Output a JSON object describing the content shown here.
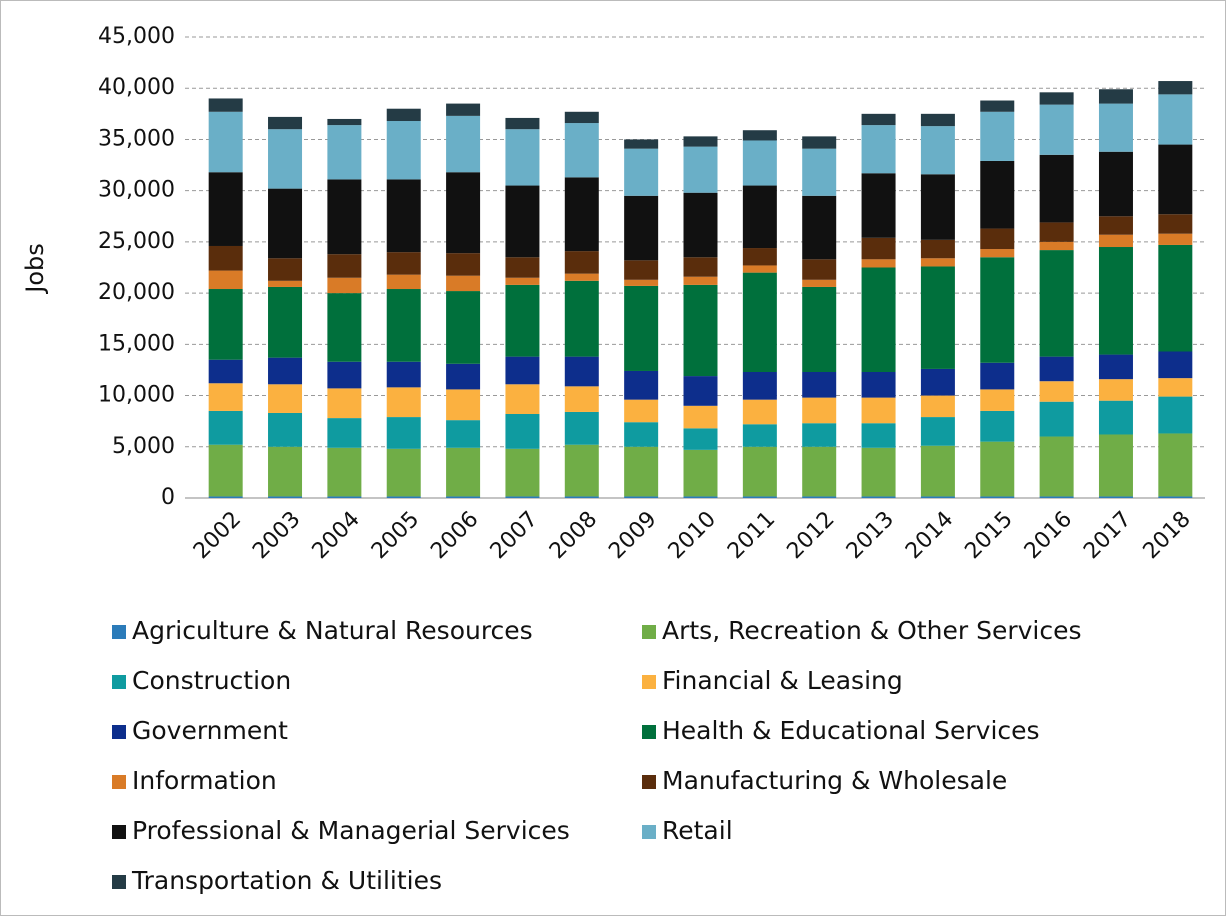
{
  "chart_data": {
    "type": "stacked_bar",
    "y_label": "Jobs",
    "categories": [
      "2002",
      "2003",
      "2004",
      "2005",
      "2006",
      "2007",
      "2008",
      "2009",
      "2010",
      "2011",
      "2012",
      "2013",
      "2014",
      "2015",
      "2016",
      "2017",
      "2018"
    ],
    "ylim": [
      0,
      45000
    ],
    "yticks": [
      0,
      {
        "value": 5000,
        "label": "5,000"
      },
      {
        "value": 10000,
        "label": "10,000"
      },
      {
        "value": 15000,
        "label": "15,000"
      },
      {
        "value": 20000,
        "label": "20,000"
      },
      {
        "value": 25000,
        "label": "25,000"
      },
      {
        "value": 30000,
        "label": "30,000"
      },
      {
        "value": 35000,
        "label": "35,000"
      },
      {
        "value": 40000,
        "label": "40,000"
      },
      {
        "value": 45000,
        "label": "45,000"
      }
    ],
    "grid": true,
    "legend": "bottom",
    "series": [
      {
        "name": "Agriculture & Natural Resources",
        "color": "#2b7bb9",
        "values": [
          150,
          150,
          150,
          150,
          150,
          150,
          150,
          150,
          150,
          150,
          150,
          150,
          150,
          150,
          150,
          150,
          150
        ]
      },
      {
        "name": "Arts, Recreation & Other Services",
        "color": "#70ad47",
        "values": [
          5050,
          4850,
          4750,
          4650,
          4750,
          4650,
          5050,
          4850,
          4550,
          4850,
          4850,
          4750,
          4950,
          5350,
          5850,
          6050,
          6150
        ]
      },
      {
        "name": "Construction",
        "color": "#0f9ba0",
        "values": [
          3300,
          3300,
          2900,
          3100,
          2700,
          3400,
          3200,
          2400,
          2100,
          2200,
          2300,
          2400,
          2800,
          3000,
          3400,
          3300,
          3600
        ]
      },
      {
        "name": "Financial & Leasing",
        "color": "#fbb140",
        "values": [
          2700,
          2800,
          2900,
          2900,
          3000,
          2900,
          2500,
          2200,
          2200,
          2400,
          2500,
          2500,
          2100,
          2100,
          2000,
          2100,
          1800
        ]
      },
      {
        "name": "Government",
        "color": "#0d2e8c",
        "values": [
          2300,
          2600,
          2600,
          2500,
          2500,
          2700,
          2900,
          2800,
          2900,
          2700,
          2500,
          2500,
          2600,
          2600,
          2400,
          2400,
          2600
        ]
      },
      {
        "name": "Health & Educational Services",
        "color": "#00703c",
        "values": [
          6900,
          6900,
          6700,
          7100,
          7100,
          7000,
          7400,
          8300,
          8900,
          9700,
          8300,
          10200,
          10000,
          10300,
          10400,
          10500,
          10400
        ]
      },
      {
        "name": "Information",
        "color": "#d97b27",
        "values": [
          1800,
          600,
          1500,
          1400,
          1500,
          700,
          700,
          600,
          800,
          700,
          700,
          800,
          800,
          800,
          800,
          1200,
          1100
        ]
      },
      {
        "name": "Manufacturing & Wholesale",
        "color": "#5a2d0c",
        "values": [
          2400,
          2200,
          2300,
          2200,
          2200,
          2000,
          2200,
          1900,
          1900,
          1700,
          2000,
          2100,
          1800,
          2000,
          1900,
          1800,
          1900
        ]
      },
      {
        "name": "Professional & Managerial Services",
        "color": "#111111",
        "values": [
          7200,
          6800,
          7300,
          7100,
          7900,
          7000,
          7200,
          6300,
          6300,
          6100,
          6200,
          6300,
          6400,
          6600,
          6600,
          6300,
          6800
        ]
      },
      {
        "name": "Retail",
        "color": "#6aafc7",
        "values": [
          5900,
          5800,
          5300,
          5700,
          5500,
          5500,
          5300,
          4600,
          4500,
          4400,
          4600,
          4700,
          4700,
          4800,
          4900,
          4700,
          4900
        ]
      },
      {
        "name": "Transportation & Utilities",
        "color": "#243b45",
        "values": [
          1300,
          1200,
          600,
          1200,
          1200,
          1100,
          1100,
          900,
          1000,
          1000,
          1200,
          1100,
          1200,
          1100,
          1200,
          1400,
          1300
        ]
      }
    ]
  }
}
